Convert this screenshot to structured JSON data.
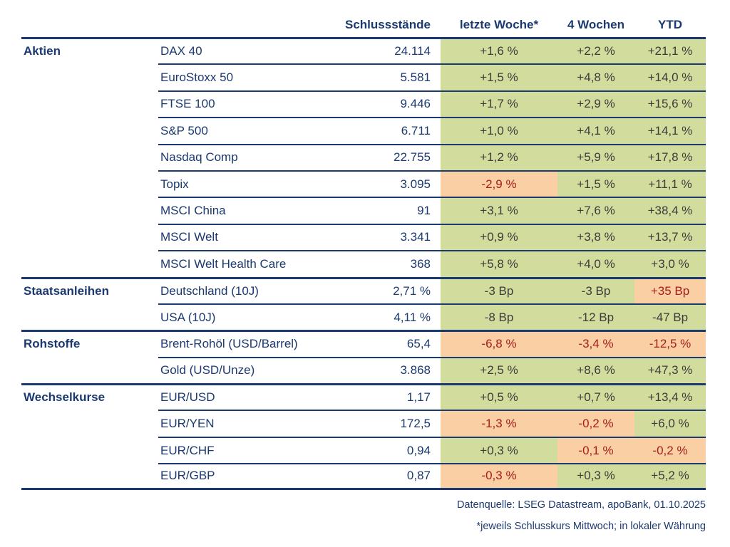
{
  "chart_data": {
    "type": "table",
    "columns": {
      "closing": "Schlussstände",
      "week": "letzte Woche*",
      "four_weeks": "4 Wochen",
      "ytd": "YTD"
    },
    "sections": [
      {
        "label": "Aktien",
        "rows": [
          {
            "name": "DAX 40",
            "close": "24.114",
            "week": {
              "v": "+1,6 %",
              "s": "pos"
            },
            "four_weeks": {
              "v": "+2,2 %",
              "s": "pos"
            },
            "ytd": {
              "v": "+21,1 %",
              "s": "pos"
            }
          },
          {
            "name": "EuroStoxx 50",
            "close": "5.581",
            "week": {
              "v": "+1,5 %",
              "s": "pos"
            },
            "four_weeks": {
              "v": "+4,8 %",
              "s": "pos"
            },
            "ytd": {
              "v": "+14,0 %",
              "s": "pos"
            }
          },
          {
            "name": "FTSE 100",
            "close": "9.446",
            "week": {
              "v": "+1,7 %",
              "s": "pos"
            },
            "four_weeks": {
              "v": "+2,9 %",
              "s": "pos"
            },
            "ytd": {
              "v": "+15,6 %",
              "s": "pos"
            }
          },
          {
            "name": "S&P 500",
            "close": "6.711",
            "week": {
              "v": "+1,0 %",
              "s": "pos"
            },
            "four_weeks": {
              "v": "+4,1 %",
              "s": "pos"
            },
            "ytd": {
              "v": "+14,1 %",
              "s": "pos"
            }
          },
          {
            "name": "Nasdaq Comp",
            "close": "22.755",
            "week": {
              "v": "+1,2 %",
              "s": "pos"
            },
            "four_weeks": {
              "v": "+5,9 %",
              "s": "pos"
            },
            "ytd": {
              "v": "+17,8 %",
              "s": "pos"
            }
          },
          {
            "name": "Topix",
            "close": "3.095",
            "week": {
              "v": "-2,9 %",
              "s": "neg"
            },
            "four_weeks": {
              "v": "+1,5 %",
              "s": "pos"
            },
            "ytd": {
              "v": "+11,1 %",
              "s": "pos"
            }
          },
          {
            "name": "MSCI China",
            "close": "91",
            "week": {
              "v": "+3,1 %",
              "s": "pos"
            },
            "four_weeks": {
              "v": "+7,6 %",
              "s": "pos"
            },
            "ytd": {
              "v": "+38,4 %",
              "s": "pos"
            }
          },
          {
            "name": "MSCI Welt",
            "close": "3.341",
            "week": {
              "v": "+0,9 %",
              "s": "pos"
            },
            "four_weeks": {
              "v": "+3,8 %",
              "s": "pos"
            },
            "ytd": {
              "v": "+13,7 %",
              "s": "pos"
            }
          },
          {
            "name": "MSCI Welt Health Care",
            "close": "368",
            "week": {
              "v": "+5,8 %",
              "s": "pos"
            },
            "four_weeks": {
              "v": "+4,0 %",
              "s": "pos"
            },
            "ytd": {
              "v": "+3,0 %",
              "s": "pos"
            }
          }
        ]
      },
      {
        "label": "Staatsanleihen",
        "rows": [
          {
            "name": "Deutschland (10J)",
            "close": "2,71 %",
            "week": {
              "v": "-3 Bp",
              "s": "pos"
            },
            "four_weeks": {
              "v": "-3 Bp",
              "s": "pos"
            },
            "ytd": {
              "v": "+35 Bp",
              "s": "neg"
            }
          },
          {
            "name": "USA (10J)",
            "close": "4,11 %",
            "week": {
              "v": "-8 Bp",
              "s": "pos"
            },
            "four_weeks": {
              "v": "-12 Bp",
              "s": "pos"
            },
            "ytd": {
              "v": "-47 Bp",
              "s": "pos"
            }
          }
        ]
      },
      {
        "label": "Rohstoffe",
        "rows": [
          {
            "name": "Brent-Rohöl (USD/Barrel)",
            "close": "65,4",
            "week": {
              "v": "-6,8 %",
              "s": "neg"
            },
            "four_weeks": {
              "v": "-3,4 %",
              "s": "neg"
            },
            "ytd": {
              "v": "-12,5 %",
              "s": "neg"
            }
          },
          {
            "name": "Gold (USD/Unze)",
            "close": "3.868",
            "week": {
              "v": "+2,5 %",
              "s": "pos"
            },
            "four_weeks": {
              "v": "+8,6 %",
              "s": "pos"
            },
            "ytd": {
              "v": "+47,3 %",
              "s": "pos"
            }
          }
        ]
      },
      {
        "label": "Wechselkurse",
        "rows": [
          {
            "name": "EUR/USD",
            "close": "1,17",
            "week": {
              "v": "+0,5 %",
              "s": "pos"
            },
            "four_weeks": {
              "v": "+0,7 %",
              "s": "pos"
            },
            "ytd": {
              "v": "+13,4 %",
              "s": "pos"
            }
          },
          {
            "name": "EUR/YEN",
            "close": "172,5",
            "week": {
              "v": "-1,3 %",
              "s": "neg"
            },
            "four_weeks": {
              "v": "-0,2 %",
              "s": "neg"
            },
            "ytd": {
              "v": "+6,0 %",
              "s": "pos"
            }
          },
          {
            "name": "EUR/CHF",
            "close": "0,94",
            "week": {
              "v": "+0,3 %",
              "s": "pos"
            },
            "four_weeks": {
              "v": "-0,1 %",
              "s": "neg"
            },
            "ytd": {
              "v": "-0,2 %",
              "s": "neg"
            }
          },
          {
            "name": "EUR/GBP",
            "close": "0,87",
            "week": {
              "v": "-0,3 %",
              "s": "neg"
            },
            "four_weeks": {
              "v": "+0,3 %",
              "s": "pos"
            },
            "ytd": {
              "v": "+5,2 %",
              "s": "pos"
            }
          }
        ]
      }
    ]
  },
  "colors": {
    "navy": "#1b3a70",
    "green": "#d1dc9d",
    "orange": "#f9cfa3",
    "red": "#a51e1e",
    "dark": "#3c3c3b"
  },
  "footer": {
    "source": "Datenquelle: LSEG Datastream, apoBank, 01.10.2025",
    "note": "*jeweils Schlusskurs Mittwoch; in lokaler Währung"
  }
}
